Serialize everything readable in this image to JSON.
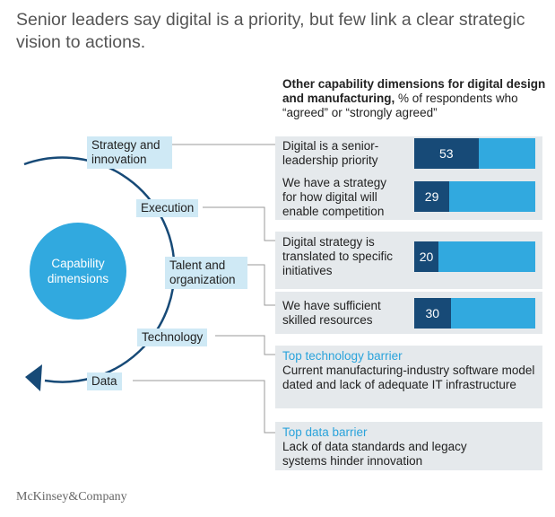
{
  "title": "Senior leaders say digital is a priority, but few link a clear strategic vision to actions.",
  "subtitle": {
    "bold": "Other capability dimensions for digital design and manufacturing,",
    "rest": " % of respondents who “agreed” or “strongly agreed”"
  },
  "center": "Capability dimensions",
  "dimensions": [
    "Strategy and innovation",
    "Execution",
    "Talent and organization",
    "Technology",
    "Data"
  ],
  "statements": [
    {
      "text": "Digital is a senior-leadership priority",
      "value": 53
    },
    {
      "text": "We have a strategy for how digital will enable competition",
      "value": 29
    },
    {
      "text": "Digital strategy is translated to specific initiatives",
      "value": 20
    },
    {
      "text": "We have sufficient skilled resources",
      "value": 30
    }
  ],
  "barriers": [
    {
      "title": "Top technology barrier",
      "text": "Current manufacturing-industry software model dated and lack of adequate IT infrastructure"
    },
    {
      "title": "Top data barrier",
      "text": "Lack of data standards and legacy systems hinder innovation"
    }
  ],
  "colors": {
    "dark": "#174a77",
    "light": "#31a9df",
    "label_bg": "#cfe9f5",
    "panel_bg": "#e5e9ec"
  },
  "logo": "McKinsey&Company"
}
